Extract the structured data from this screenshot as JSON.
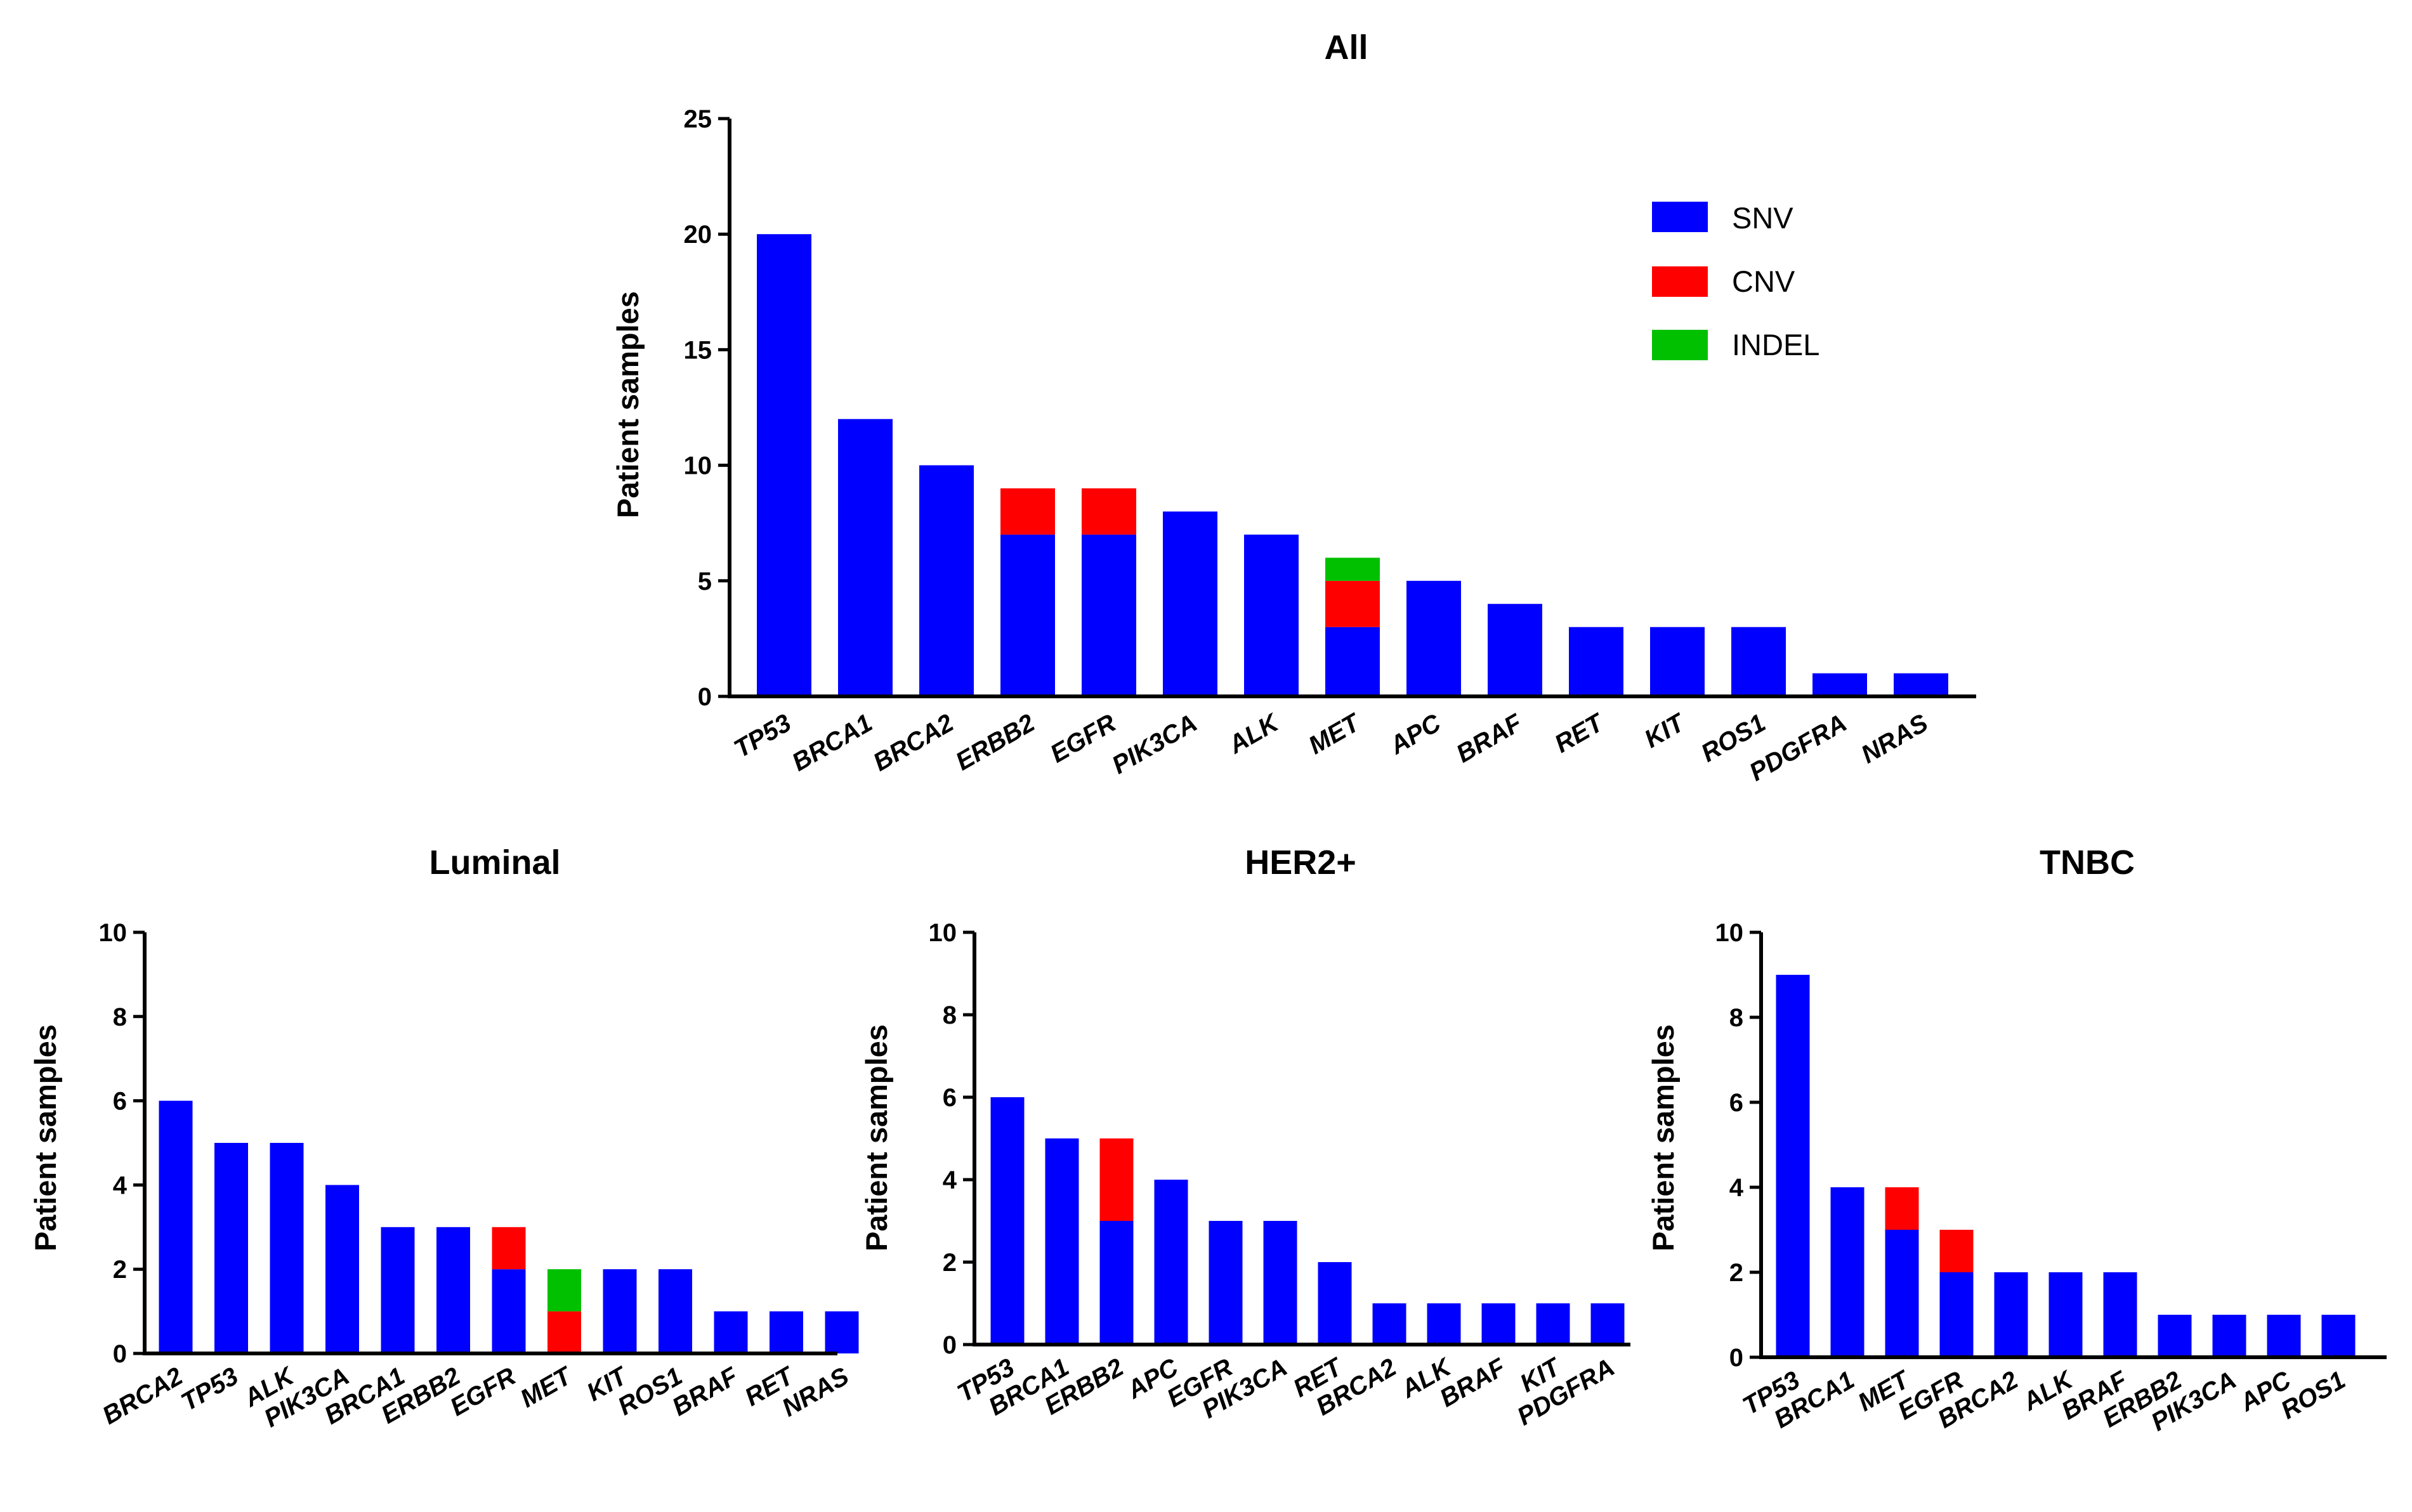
{
  "legend": [
    {
      "name": "SNV",
      "color": "#0000FF"
    },
    {
      "name": "CNV",
      "color": "#FF0000"
    },
    {
      "name": "INDEL",
      "color": "#00C000"
    }
  ],
  "chart_data": [
    {
      "type": "bar",
      "stacked": true,
      "title": "All",
      "xlabel": "",
      "ylabel": "Patient samples",
      "ylim": [
        0,
        25
      ],
      "yticks": [
        0,
        5,
        10,
        15,
        20,
        25
      ],
      "categories": [
        "TP53",
        "BRCA1",
        "BRCA2",
        "ERBB2",
        "EGFR",
        "PIK3CA",
        "ALK",
        "MET",
        "APC",
        "BRAF",
        "RET",
        "KIT",
        "ROS1",
        "PDGFRA",
        "NRAS"
      ],
      "series": [
        {
          "name": "SNV",
          "values": [
            20,
            12,
            10,
            7,
            7,
            8,
            7,
            3,
            5,
            4,
            3,
            3,
            3,
            1,
            1
          ]
        },
        {
          "name": "CNV",
          "values": [
            0,
            0,
            0,
            2,
            2,
            0,
            0,
            2,
            0,
            0,
            0,
            0,
            0,
            0,
            0
          ]
        },
        {
          "name": "INDEL",
          "values": [
            0,
            0,
            0,
            0,
            0,
            0,
            0,
            1,
            0,
            0,
            0,
            0,
            0,
            0,
            0
          ]
        }
      ]
    },
    {
      "type": "bar",
      "stacked": true,
      "title": "Luminal",
      "xlabel": "",
      "ylabel": "Patient samples",
      "ylim": [
        0,
        10
      ],
      "yticks": [
        0,
        2,
        4,
        6,
        8,
        10
      ],
      "categories": [
        "BRCA2",
        "TP53",
        "ALK",
        "PIK3CA",
        "BRCA1",
        "ERBB2",
        "EGFR",
        "MET",
        "KIT",
        "ROS1",
        "BRAF",
        "RET",
        "NRAS"
      ],
      "series": [
        {
          "name": "SNV",
          "values": [
            6,
            5,
            5,
            4,
            3,
            3,
            2,
            0,
            2,
            2,
            1,
            1,
            1
          ]
        },
        {
          "name": "CNV",
          "values": [
            0,
            0,
            0,
            0,
            0,
            0,
            1,
            1,
            0,
            0,
            0,
            0,
            0
          ]
        },
        {
          "name": "INDEL",
          "values": [
            0,
            0,
            0,
            0,
            0,
            0,
            0,
            1,
            0,
            0,
            0,
            0,
            0
          ]
        }
      ]
    },
    {
      "type": "bar",
      "stacked": true,
      "title": "HER2+",
      "xlabel": "",
      "ylabel": "Patient samples",
      "ylim": [
        0,
        10
      ],
      "yticks": [
        0,
        2,
        4,
        6,
        8,
        10
      ],
      "categories": [
        "TP53",
        "BRCA1",
        "ERBB2",
        "APC",
        "EGFR",
        "PIK3CA",
        "RET",
        "BRCA2",
        "ALK",
        "BRAF",
        "KIT",
        "PDGFRA"
      ],
      "series": [
        {
          "name": "SNV",
          "values": [
            6,
            5,
            3,
            4,
            3,
            3,
            2,
            1,
            1,
            1,
            1,
            1
          ]
        },
        {
          "name": "CNV",
          "values": [
            0,
            0,
            2,
            0,
            0,
            0,
            0,
            0,
            0,
            0,
            0,
            0
          ]
        },
        {
          "name": "INDEL",
          "values": [
            0,
            0,
            0,
            0,
            0,
            0,
            0,
            0,
            0,
            0,
            0,
            0
          ]
        }
      ]
    },
    {
      "type": "bar",
      "stacked": true,
      "title": "TNBC",
      "xlabel": "",
      "ylabel": "Patient samples",
      "ylim": [
        0,
        10
      ],
      "yticks": [
        0,
        2,
        4,
        6,
        8,
        10
      ],
      "categories": [
        "TP53",
        "BRCA1",
        "MET",
        "EGFR",
        "BRCA2",
        "ALK",
        "BRAF",
        "ERBB2",
        "PIK3CA",
        "APC",
        "ROS1"
      ],
      "series": [
        {
          "name": "SNV",
          "values": [
            9,
            4,
            3,
            2,
            2,
            2,
            2,
            1,
            1,
            1,
            1
          ]
        },
        {
          "name": "CNV",
          "values": [
            0,
            0,
            1,
            1,
            0,
            0,
            0,
            0,
            0,
            0,
            0
          ]
        },
        {
          "name": "INDEL",
          "values": [
            0,
            0,
            0,
            0,
            0,
            0,
            0,
            0,
            0,
            0,
            0
          ]
        }
      ]
    }
  ]
}
